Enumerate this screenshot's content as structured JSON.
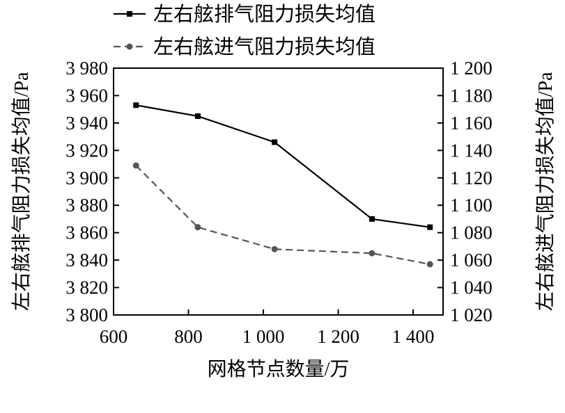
{
  "chart_data": {
    "type": "line",
    "xlabel": "网格节点数量/万",
    "ylabel_left": "左右舷排气阻力损失均值/Pa",
    "ylabel_right": "左右舷进气阻力损失均值/Pa",
    "xlim": [
      600,
      1480
    ],
    "ylim_left": [
      3800,
      3980
    ],
    "ylim_right": [
      1020,
      1200
    ],
    "x_ticks": [
      600,
      800,
      1000,
      1200,
      1400
    ],
    "x_tick_labels": [
      "600",
      "800",
      "1 000",
      "1 200",
      "1 400"
    ],
    "y_left_ticks": [
      3800,
      3820,
      3840,
      3860,
      3880,
      3900,
      3920,
      3940,
      3960,
      3980
    ],
    "y_left_tick_labels": [
      "3 800",
      "3 820",
      "3 840",
      "3 860",
      "3 880",
      "3 900",
      "3 920",
      "3 940",
      "3 960",
      "3 980"
    ],
    "y_right_ticks": [
      1020,
      1040,
      1060,
      1080,
      1100,
      1120,
      1140,
      1160,
      1180,
      1200
    ],
    "y_right_tick_labels": [
      "1 020",
      "1 040",
      "1 060",
      "1 080",
      "1 100",
      "1 120",
      "1 140",
      "1 160",
      "1 180",
      "1 200"
    ],
    "grid": false,
    "legend_position": "top-center",
    "series": [
      {
        "name": "左右舷排气阻力损失均值",
        "axis": "left",
        "line_style": "solid",
        "marker": "square",
        "color": "#000000",
        "x": [
          660,
          825,
          1030,
          1290,
          1445
        ],
        "y": [
          3953,
          3945,
          3926,
          3870,
          3864
        ]
      },
      {
        "name": "左右舷进气阻力损失均值",
        "axis": "right",
        "line_style": "dashed",
        "marker": "circle",
        "color": "#555555",
        "x": [
          660,
          825,
          1030,
          1290,
          1445
        ],
        "y": [
          1129,
          1084,
          1068,
          1065,
          1057
        ]
      }
    ]
  }
}
